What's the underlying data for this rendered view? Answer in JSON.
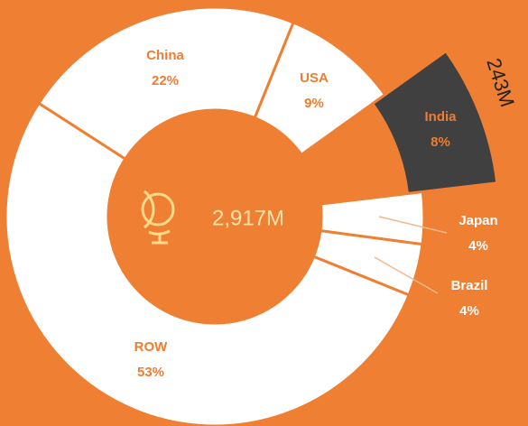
{
  "chart_data": {
    "type": "donut",
    "categories": [
      "USA",
      "India",
      "Japan",
      "Brazil",
      "ROW",
      "China"
    ],
    "values": [
      9,
      8,
      4,
      4,
      53,
      22
    ],
    "value_labels": [
      "9%",
      "8%",
      "4%",
      "4%",
      "53%",
      "22%"
    ],
    "colors": [
      "#ffffff",
      "#404040",
      "#ffffff",
      "#ffffff",
      "#ffffff",
      "#ffffff"
    ],
    "exploded": "India",
    "center_label": "2,917M",
    "annotation": "243M"
  }
}
